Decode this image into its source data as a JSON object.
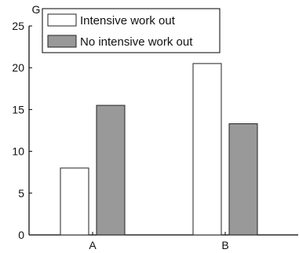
{
  "chart_data": {
    "type": "bar",
    "ylabel": "G",
    "categories": [
      "A",
      "B"
    ],
    "series": [
      {
        "name": "Intensive work out",
        "values": [
          8,
          20.5
        ],
        "color": "#ffffff"
      },
      {
        "name": "No intensive work out",
        "values": [
          15.5,
          13.3
        ],
        "color": "#999999"
      }
    ],
    "ylim": [
      0,
      25
    ],
    "yticks": [
      0,
      5,
      10,
      15,
      20,
      25
    ],
    "grid": false,
    "legend_position": "top-left"
  }
}
